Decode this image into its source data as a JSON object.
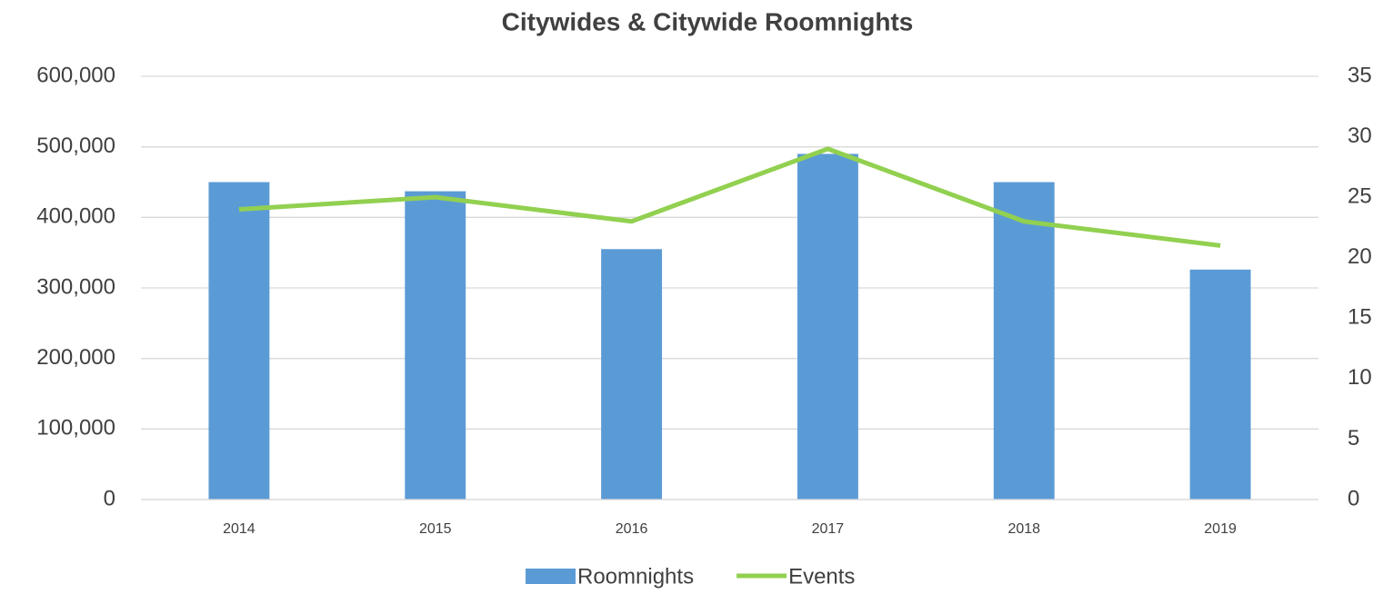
{
  "chart_data": {
    "type": "combo",
    "title": "Citywides & Citywide Roomnights",
    "categories": [
      "2014",
      "2015",
      "2016",
      "2017",
      "2018",
      "2019"
    ],
    "series": [
      {
        "name": "Roomnights",
        "type": "bar",
        "color": "#5b9bd5",
        "axis": "y",
        "values": [
          450000,
          437000,
          355000,
          490000,
          450000,
          326000
        ]
      },
      {
        "name": "Events",
        "type": "line",
        "color": "#92d050",
        "axis": "y2",
        "values": [
          24,
          25,
          23,
          29,
          23,
          21
        ]
      }
    ],
    "ylim": [
      0,
      600000
    ],
    "yticks": [
      0,
      {
        "value": 100000,
        "label": "100,000"
      },
      {
        "value": 200000,
        "label": "200,000"
      },
      {
        "value": 300000,
        "label": "300,000"
      },
      {
        "value": 400000,
        "label": "400,000"
      },
      {
        "value": 500000,
        "label": "500,000"
      },
      {
        "value": 600000,
        "label": "600,000"
      }
    ],
    "y2lim": [
      0,
      35
    ],
    "y2ticks": [
      0,
      5,
      10,
      15,
      20,
      25,
      30,
      35
    ],
    "grid": true,
    "legend": "bottom"
  }
}
